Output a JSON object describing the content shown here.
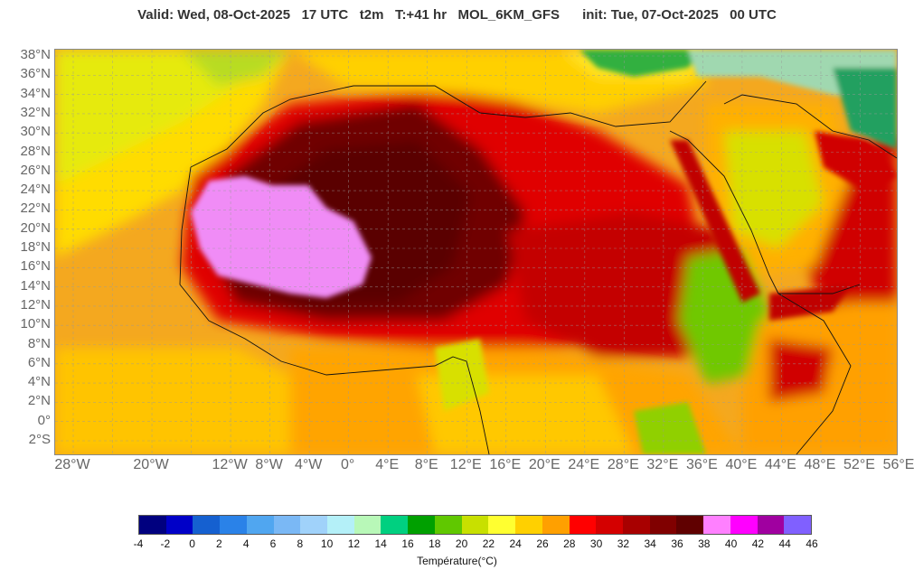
{
  "header": {
    "title": "Valid: Wed, 08-Oct-2025   17 UTC   t2m   T:+41 hr   MOL_6KM_GFS      init: Tue, 07-Oct-2025   00 UTC"
  },
  "axes": {
    "lat_labels": [
      "38°N",
      "36°N",
      "34°N",
      "32°N",
      "30°N",
      "28°N",
      "26°N",
      "24°N",
      "22°N",
      "20°N",
      "18°N",
      "16°N",
      "14°N",
      "12°N",
      "10°N",
      "8°N",
      "6°N",
      "4°N",
      "2°N",
      "0°",
      "2°S"
    ],
    "lon_labels": [
      "28°W",
      "20°W",
      "12°W",
      "8°W",
      "4°W",
      "0°",
      "4°E",
      "8°E",
      "12°E",
      "16°E",
      "20°E",
      "24°E",
      "28°E",
      "32°E",
      "36°E",
      "40°E",
      "44°E",
      "48°E",
      "52°E",
      "56°E"
    ]
  },
  "colorbar": {
    "label": "Température(°C)",
    "ticks": [
      "-4",
      "-2",
      "0",
      "2",
      "4",
      "6",
      "8",
      "10",
      "12",
      "14",
      "16",
      "18",
      "20",
      "22",
      "24",
      "26",
      "28",
      "30",
      "32",
      "34",
      "36",
      "38",
      "40",
      "42",
      "44",
      "46"
    ],
    "colors": [
      "#00007f",
      "#0000c8",
      "#1560d0",
      "#2a82e8",
      "#50a6f0",
      "#7ab8f5",
      "#a0d2fa",
      "#b4f0f8",
      "#b8f8b8",
      "#00d080",
      "#00a000",
      "#60c800",
      "#c8e000",
      "#ffff30",
      "#ffd000",
      "#ffa000",
      "#ff0000",
      "#d40000",
      "#a80000",
      "#800000",
      "#600000",
      "#ff80ff",
      "#ff00ff",
      "#a000a0",
      "#8060ff"
    ]
  }
}
